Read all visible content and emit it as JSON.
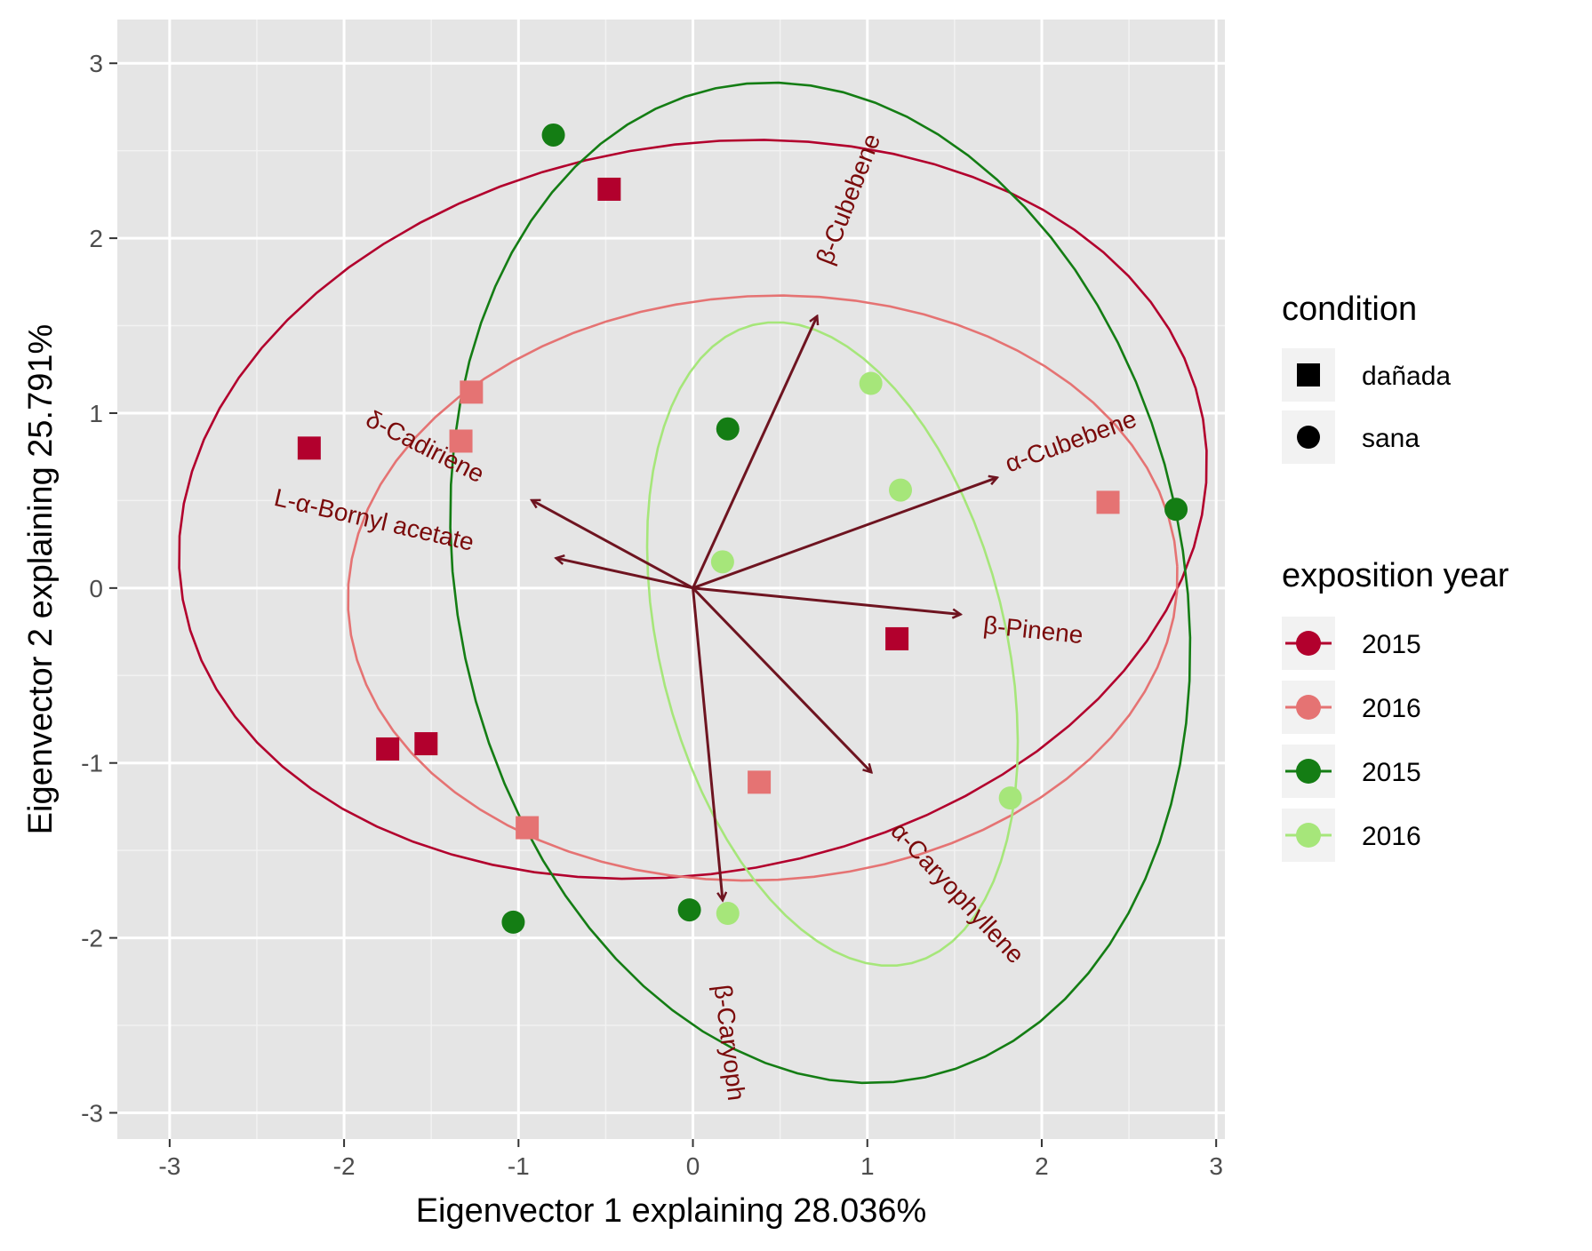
{
  "chart_data": {
    "type": "scatter",
    "xlabel": "Eigenvector 1 explaining 28.036%",
    "ylabel": "Eigenvector 2 explaining 25.791%",
    "xlim": [
      -3.3,
      3.05
    ],
    "ylim": [
      -3.15,
      3.25
    ],
    "xticks": [
      -3,
      -2,
      -1,
      0,
      1,
      2,
      3
    ],
    "yticks": [
      -3,
      -2,
      -1,
      0,
      1,
      2,
      3
    ],
    "xtick_labels": [
      "-3",
      "-2",
      "-1",
      "0",
      "1",
      "2",
      "3"
    ],
    "ytick_labels": [
      "-3",
      "-2",
      "-1",
      "0",
      "1",
      "2",
      "3"
    ],
    "grid": true,
    "background": "#e5e5e5",
    "legend": {
      "placement": "right",
      "condition_title": "condition",
      "condition_items": [
        {
          "label": "dañada",
          "shape": "square"
        },
        {
          "label": "sana",
          "shape": "circle"
        }
      ],
      "year_title": "exposition year",
      "year_items": [
        {
          "label": "2015",
          "color": "#b2002d"
        },
        {
          "label": "2016",
          "color": "#e57373"
        },
        {
          "label": "2015",
          "color": "#147d14"
        },
        {
          "label": "2016",
          "color": "#a6e67a"
        }
      ]
    },
    "series": [
      {
        "condition": "dañada",
        "year": "2015",
        "color": "#b2002d",
        "shape": "square",
        "points": [
          [
            -2.2,
            0.8
          ],
          [
            -0.48,
            2.28
          ],
          [
            -1.75,
            -0.92
          ],
          [
            -1.53,
            -0.89
          ],
          [
            1.17,
            -0.29
          ]
        ],
        "ellipse": {
          "cx": 0.0,
          "cy": 0.45,
          "rx": 2.97,
          "ry": 2.08,
          "angle": 10
        }
      },
      {
        "condition": "dañada",
        "year": "2016",
        "color": "#e57373",
        "shape": "square",
        "points": [
          [
            -1.27,
            1.12
          ],
          [
            -1.33,
            0.84
          ],
          [
            -0.95,
            -1.37
          ],
          [
            0.38,
            -1.11
          ],
          [
            2.38,
            0.49
          ]
        ],
        "ellipse": {
          "cx": 0.4,
          "cy": 0.0,
          "rx": 2.38,
          "ry": 1.67,
          "angle": 3
        }
      },
      {
        "condition": "sana",
        "year": "2015",
        "color": "#147d14",
        "shape": "circle",
        "points": [
          [
            -0.8,
            2.59
          ],
          [
            0.2,
            0.91
          ],
          [
            2.77,
            0.45
          ],
          [
            -1.03,
            -1.91
          ],
          [
            -0.02,
            -1.84
          ]
        ],
        "ellipse": {
          "cx": 0.73,
          "cy": 0.03,
          "rx": 2.08,
          "ry": 2.89,
          "angle": 12
        }
      },
      {
        "condition": "sana",
        "year": "2016",
        "color": "#a6e67a",
        "shape": "circle",
        "points": [
          [
            1.02,
            1.17
          ],
          [
            1.19,
            0.56
          ],
          [
            0.17,
            0.15
          ],
          [
            1.82,
            -1.2
          ],
          [
            0.2,
            -1.86
          ]
        ],
        "ellipse": {
          "cx": 0.8,
          "cy": -0.32,
          "rx": 0.99,
          "ry": 1.88,
          "angle": 14
        }
      }
    ],
    "loadings": [
      {
        "name": "β-Cubebene",
        "x": 0.71,
        "y": 1.55,
        "label_x": 0.9,
        "label_y": 2.22,
        "angle": -69,
        "anchor": "middle"
      },
      {
        "name": "α-Cubebene",
        "x": 1.74,
        "y": 0.63,
        "label_x": 2.17,
        "label_y": 0.83,
        "angle": -20,
        "anchor": "middle"
      },
      {
        "name": "β-Pinene",
        "x": 1.53,
        "y": -0.15,
        "label_x": 1.95,
        "label_y": -0.25,
        "angle": 6,
        "anchor": "middle"
      },
      {
        "name": "α-Caryophyllene",
        "x": 1.02,
        "y": -1.05,
        "label_x": 1.51,
        "label_y": -1.75,
        "angle": 47,
        "anchor": "middle"
      },
      {
        "name": "β-Caryoph",
        "x": 0.17,
        "y": -1.78,
        "label_x": 0.2,
        "label_y": -2.6,
        "angle": 83,
        "anchor": "middle"
      },
      {
        "name": "δ-Cadiriene",
        "x": -0.92,
        "y": 0.5,
        "label_x": -1.54,
        "label_y": 0.8,
        "angle": 27,
        "anchor": "middle"
      },
      {
        "name": "L-α-Bornyl acetate",
        "x": -0.78,
        "y": 0.17,
        "label_x": -1.83,
        "label_y": 0.38,
        "angle": 13,
        "anchor": "middle"
      }
    ],
    "loading_color": "#6e1420"
  }
}
